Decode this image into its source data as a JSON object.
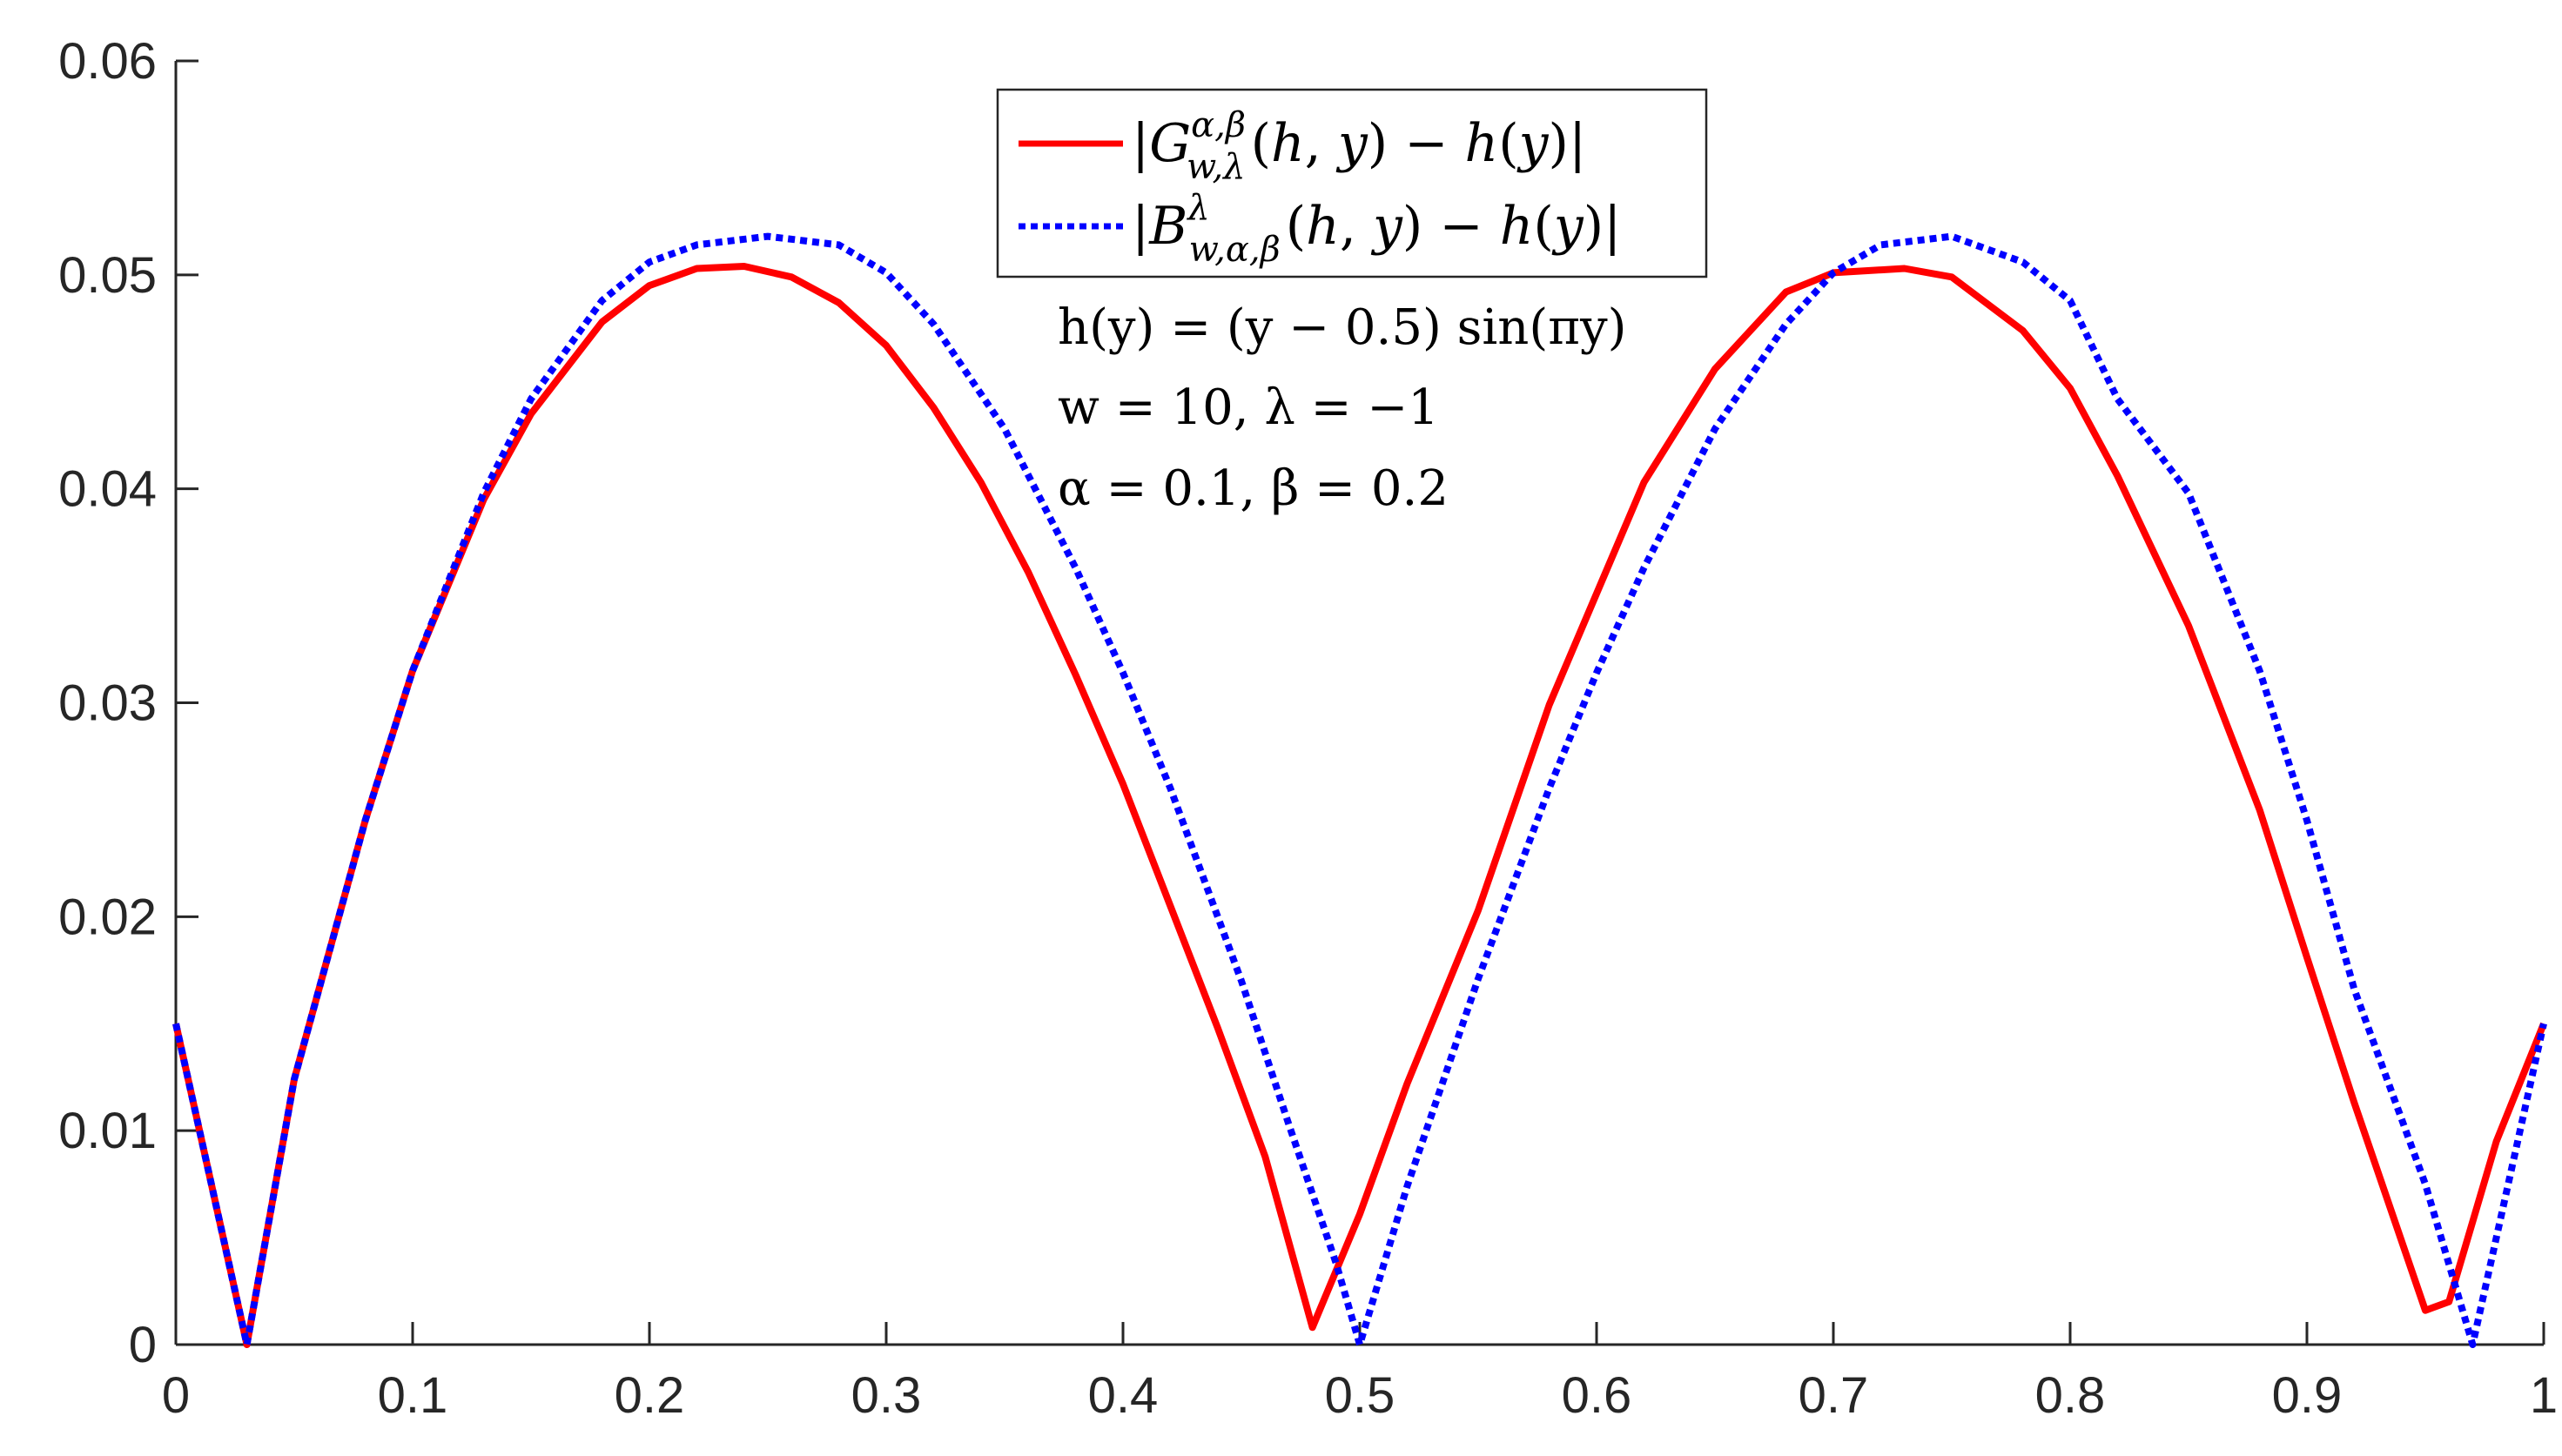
{
  "chart_data": {
    "type": "line",
    "title": "",
    "xlabel": "",
    "ylabel": "",
    "xlim": [
      0,
      1
    ],
    "ylim": [
      0,
      0.06
    ],
    "xticks": [
      0,
      0.1,
      0.2,
      0.3,
      0.4,
      0.5,
      0.6,
      0.7,
      0.8,
      0.9,
      1
    ],
    "xtick_labels": [
      "0",
      "0.1",
      "0.2",
      "0.3",
      "0.4",
      "0.5",
      "0.6",
      "0.7",
      "0.8",
      "0.9",
      "1"
    ],
    "yticks": [
      0,
      0.01,
      0.02,
      0.03,
      0.04,
      0.05,
      0.06
    ],
    "ytick_labels": [
      "0",
      "0.01",
      "0.02",
      "0.03",
      "0.04",
      "0.05",
      "0.06"
    ],
    "grid": false,
    "legend_position": "top-center",
    "series": [
      {
        "name": "|G_{w,λ}^{α,β}(h,y) − h(y)|",
        "color": "#ff0000",
        "style": "solid",
        "x": [
          0,
          0.03,
          0.05,
          0.08,
          0.1,
          0.13,
          0.15,
          0.18,
          0.2,
          0.22,
          0.24,
          0.26,
          0.28,
          0.3,
          0.32,
          0.34,
          0.36,
          0.38,
          0.4,
          0.42,
          0.44,
          0.46,
          0.48,
          0.5,
          0.52,
          0.55,
          0.58,
          0.6,
          0.62,
          0.65,
          0.68,
          0.7,
          0.73,
          0.75,
          0.78,
          0.8,
          0.82,
          0.85,
          0.88,
          0.9,
          0.92,
          0.95,
          0.96,
          0.98,
          1
        ],
        "y": [
          0.015,
          0.0,
          0.0124,
          0.0245,
          0.0315,
          0.0395,
          0.0435,
          0.0478,
          0.0495,
          0.0503,
          0.0504,
          0.0499,
          0.0487,
          0.0467,
          0.0438,
          0.0403,
          0.0361,
          0.0313,
          0.0262,
          0.0205,
          0.0148,
          0.0088,
          0.0008,
          0.0061,
          0.0122,
          0.0203,
          0.0299,
          0.0351,
          0.0403,
          0.0456,
          0.0492,
          0.0501,
          0.0503,
          0.0499,
          0.0474,
          0.0447,
          0.0406,
          0.0336,
          0.025,
          0.0181,
          0.0113,
          0.0016,
          0.002,
          0.0095,
          0.015
        ]
      },
      {
        "name": "|B_{w,α,β}^λ(h,y) − h(y)|",
        "color": "#0000ff",
        "style": "dotted",
        "x": [
          0,
          0.03,
          0.05,
          0.08,
          0.1,
          0.13,
          0.15,
          0.18,
          0.2,
          0.22,
          0.25,
          0.28,
          0.3,
          0.32,
          0.35,
          0.38,
          0.4,
          0.42,
          0.45,
          0.47,
          0.49,
          0.5,
          0.52,
          0.55,
          0.58,
          0.6,
          0.62,
          0.65,
          0.68,
          0.7,
          0.72,
          0.75,
          0.78,
          0.8,
          0.82,
          0.85,
          0.88,
          0.9,
          0.92,
          0.95,
          0.97,
          1
        ],
        "y": [
          0.015,
          0.0,
          0.0124,
          0.0245,
          0.0315,
          0.0398,
          0.0442,
          0.0488,
          0.0506,
          0.0514,
          0.0518,
          0.0514,
          0.0501,
          0.0477,
          0.0428,
          0.0363,
          0.0314,
          0.026,
          0.017,
          0.0103,
          0.0038,
          0.0,
          0.0074,
          0.0171,
          0.026,
          0.0314,
          0.0363,
          0.0428,
          0.0477,
          0.0501,
          0.0514,
          0.0518,
          0.0506,
          0.0488,
          0.0442,
          0.0398,
          0.0315,
          0.0245,
          0.0166,
          0.0075,
          0.0,
          0.015
        ]
      }
    ],
    "annotations": [
      "h(y) = (y − 0.5) sin(πy)",
      "w = 10,  λ = −1",
      "α = 0.1,  β = 0.2"
    ]
  }
}
